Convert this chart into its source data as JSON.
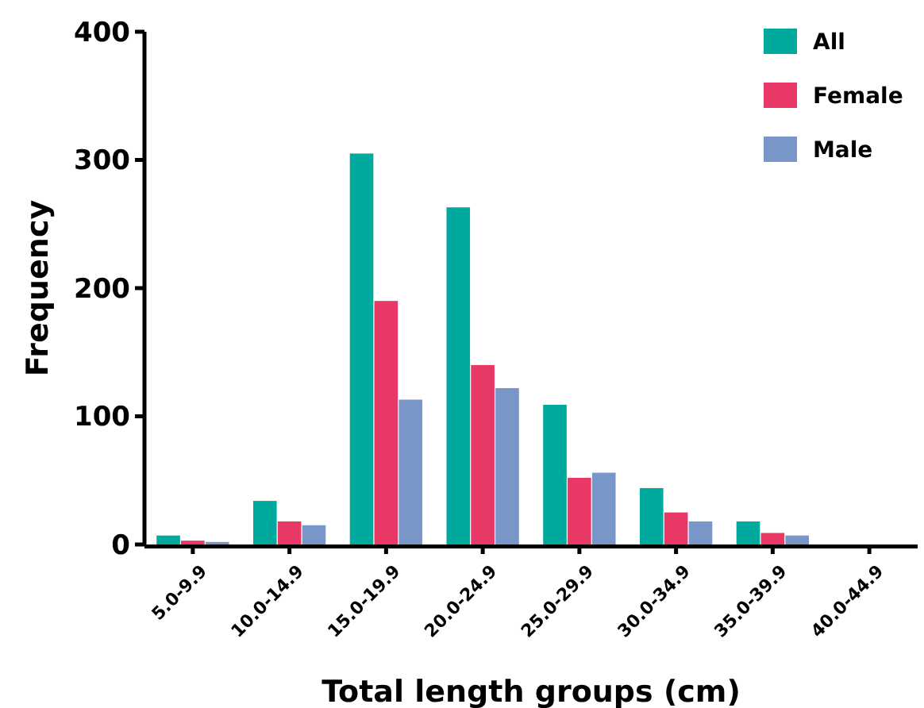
{
  "chart_data": {
    "type": "bar",
    "xlabel": "Total length groups (cm)",
    "ylabel": "Frequency",
    "categories": [
      "5.0-9.9",
      "10.0-14.9",
      "15.0-19.9",
      "20.0-24.9",
      "25.0-29.9",
      "30.0-34.9",
      "35.0-39.9",
      "40.0-44.9"
    ],
    "series": [
      {
        "name": "All",
        "color": "#00a99d",
        "values": [
          7,
          34,
          305,
          263,
          109,
          44,
          18,
          0
        ]
      },
      {
        "name": "Female",
        "color": "#e83866",
        "values": [
          3,
          18,
          190,
          140,
          52,
          25,
          9,
          0
        ]
      },
      {
        "name": "Male",
        "color": "#7896c7",
        "values": [
          2,
          15,
          113,
          122,
          56,
          18,
          7,
          0
        ]
      }
    ],
    "ylim": [
      0,
      400
    ],
    "yticks": [
      0,
      100,
      200,
      300,
      400
    ],
    "grid": false,
    "legend": "top right"
  }
}
